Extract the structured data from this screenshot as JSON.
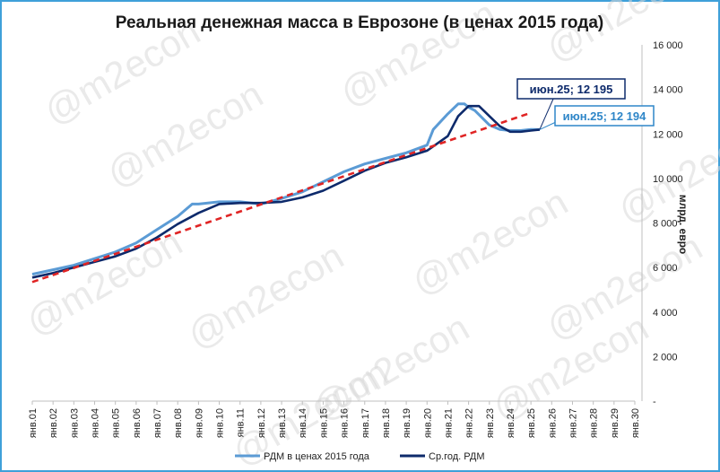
{
  "chart_data": {
    "type": "line",
    "title": "Реальная денежная масса в Еврозоне (в ценах 2015 года)",
    "ylabel": "млрд. евро",
    "ylim": [
      0,
      16000
    ],
    "y_ticks": [
      "-",
      "2 000",
      "4 000",
      "6 000",
      "8 000",
      "10 000",
      "12 000",
      "14 000",
      "16 000"
    ],
    "x_ticks": [
      "янв.01",
      "янв.02",
      "янв.03",
      "янв.04",
      "янв.05",
      "янв.06",
      "янв.07",
      "янв.08",
      "янв.09",
      "янв.10",
      "янв.11",
      "янв.12",
      "янв.13",
      "янв.14",
      "янв.15",
      "янв.16",
      "янв.17",
      "янв.18",
      "янв.19",
      "янв.20",
      "янв.21",
      "янв.22",
      "янв.23",
      "янв.24",
      "янв.25",
      "янв.26",
      "янв.27",
      "янв.28",
      "янв.29",
      "янв.30"
    ],
    "grid": false,
    "legend_position": "bottom",
    "series": [
      {
        "name": "РДМ в ценах 2015 года",
        "color": "#5b9bd5",
        "x": [
          2001.0,
          2002.0,
          2003.0,
          2004.0,
          2005.0,
          2006.0,
          2007.0,
          2008.0,
          2008.7,
          2009.0,
          2010.0,
          2011.0,
          2012.0,
          2013.0,
          2014.0,
          2015.0,
          2016.0,
          2017.0,
          2018.0,
          2019.0,
          2020.0,
          2020.3,
          2021.0,
          2021.5,
          2021.8,
          2022.0,
          2022.3,
          2023.0,
          2023.5,
          2024.0,
          2024.5,
          2025.0,
          2025.42
        ],
        "y": [
          5700,
          5900,
          6100,
          6400,
          6700,
          7100,
          7700,
          8300,
          8850,
          8850,
          8950,
          8950,
          8850,
          9100,
          9400,
          9850,
          10300,
          10650,
          10900,
          11150,
          11500,
          12200,
          12900,
          13350,
          13350,
          13200,
          13050,
          12400,
          12200,
          12150,
          12150,
          12200,
          12194
        ]
      },
      {
        "name": "Ср.год. РДМ",
        "color": "#0d2a6b",
        "x": [
          2001.0,
          2002.0,
          2003.0,
          2004.0,
          2005.0,
          2006.0,
          2007.0,
          2008.0,
          2009.0,
          2010.0,
          2011.0,
          2012.0,
          2013.0,
          2014.0,
          2015.0,
          2016.0,
          2017.0,
          2018.0,
          2019.0,
          2020.0,
          2021.0,
          2021.5,
          2022.0,
          2022.5,
          2023.0,
          2023.5,
          2024.0,
          2024.5,
          2025.0,
          2025.42
        ],
        "y": [
          5550,
          5750,
          6000,
          6250,
          6500,
          6850,
          7350,
          7950,
          8450,
          8850,
          8900,
          8900,
          8950,
          9150,
          9450,
          9900,
          10350,
          10700,
          10950,
          11250,
          11900,
          12800,
          13250,
          13250,
          12800,
          12350,
          12100,
          12100,
          12150,
          12195
        ]
      },
      {
        "name": "",
        "color": "#e02424",
        "style": "dashed",
        "x": [
          2001.0,
          2025.0
        ],
        "y": [
          5350,
          12950
        ]
      }
    ],
    "annotations": [
      {
        "text": "июн.25;  12 195",
        "color": "#0d2a6b",
        "x": 2025.42,
        "y": 12195
      },
      {
        "text": "июн.25;  12 194",
        "color": "#2e86c8",
        "x": 2025.42,
        "y": 12194
      }
    ],
    "watermark": "@m2econ"
  }
}
